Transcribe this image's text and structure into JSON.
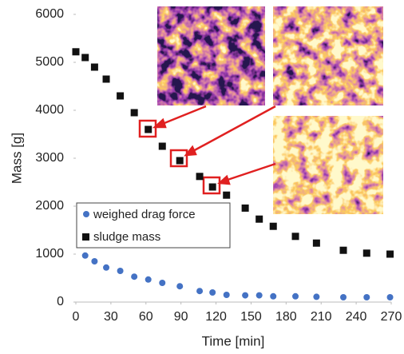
{
  "chart_data": {
    "type": "scatter",
    "xlabel": "Time [min]",
    "ylabel": "Mass [g]",
    "xlim": [
      0,
      270
    ],
    "xticks": [
      0,
      30,
      60,
      90,
      120,
      150,
      180,
      210,
      240,
      270
    ],
    "ylim": [
      0,
      6000
    ],
    "yticks": [
      0,
      1000,
      2000,
      3000,
      4000,
      5000,
      6000
    ],
    "series": [
      {
        "name": "weighed drag force",
        "color": "#4472c4",
        "marker": "circle",
        "x": [
          8,
          16,
          26,
          38,
          50,
          62,
          74,
          89,
          106,
          117,
          129,
          145,
          157,
          169,
          188,
          206,
          229,
          249,
          269
        ],
        "values": [
          970,
          850,
          720,
          650,
          530,
          470,
          400,
          330,
          230,
          200,
          150,
          140,
          140,
          120,
          120,
          110,
          100,
          100,
          100
        ]
      },
      {
        "name": "sludge mass",
        "color": "#111111",
        "marker": "square",
        "x": [
          0,
          8,
          16,
          26,
          38,
          50,
          62,
          74,
          89,
          106,
          117,
          129,
          145,
          157,
          169,
          188,
          206,
          229,
          249,
          269
        ],
        "values": [
          5220,
          5100,
          4900,
          4650,
          4300,
          3950,
          3600,
          3250,
          2950,
          2620,
          2400,
          2230,
          1960,
          1730,
          1580,
          1370,
          1230,
          1080,
          1020,
          1000
        ]
      }
    ]
  }
}
